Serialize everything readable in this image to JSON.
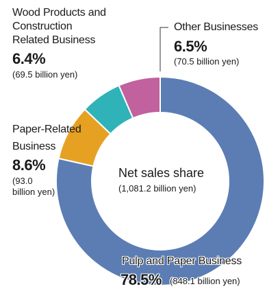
{
  "chart_data": {
    "type": "pie",
    "donut": true,
    "center_title": "Net sales share",
    "center_subtitle": "(1,081.2 billion yen)",
    "segments": [
      {
        "name": "Pulp and Paper Business",
        "share_label": "78.5%",
        "amount_label": "(848.1 billion yen)",
        "value": 78.5,
        "amount": 848.1,
        "color": "#5b7db4"
      },
      {
        "name": "Paper-Related Business",
        "share_label": "8.6%",
        "amount_label": "(93.0 billion yen)",
        "value": 8.6,
        "amount": 93.0,
        "color": "#e6a122"
      },
      {
        "name": "Wood Products and Construction Related Business",
        "share_label": "6.4%",
        "amount_label": "(69.5 billion yen)",
        "value": 6.4,
        "amount": 69.5,
        "color": "#2fb3b8"
      },
      {
        "name": "Other Businesses",
        "share_label": "6.5%",
        "amount_label": "(70.5 billion yen)",
        "value": 6.5,
        "amount": 70.5,
        "color": "#c1619d"
      }
    ],
    "labels": {
      "pulp_name": "Pulp and Paper Business",
      "paper_related_name_line1": "Paper-Related",
      "paper_related_name_line2": "Business",
      "paper_related_amount_line1": "(93.0",
      "paper_related_amount_line2": "billion yen)",
      "wood_name_line1": "Wood Products and",
      "wood_name_line2": "Construction",
      "wood_name_line3": "Related Business",
      "other_name": "Other Businesses"
    }
  }
}
